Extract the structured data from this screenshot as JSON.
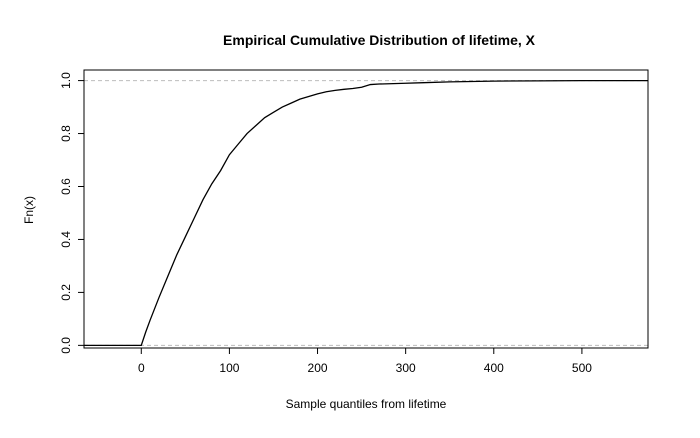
{
  "chart_data": {
    "type": "line",
    "subtype": "step-ecdf",
    "title": "Empirical Cumulative Distribution of lifetime, X",
    "xlabel": "Sample quantiles from lifetime",
    "ylabel": "Fn(x)",
    "xlim": [
      -65,
      575
    ],
    "ylim": [
      -0.01,
      1.04
    ],
    "x_ticks": [
      0,
      100,
      200,
      300,
      400,
      500
    ],
    "x_tick_labels": [
      "0",
      "100",
      "200",
      "300",
      "400",
      "500"
    ],
    "y_ticks": [
      0.0,
      0.2,
      0.4,
      0.6,
      0.8,
      1.0
    ],
    "y_tick_labels": [
      "0.0",
      "0.2",
      "0.4",
      "0.6",
      "0.8",
      "1.0"
    ],
    "reference_lines_y": [
      0,
      1
    ],
    "grid": false,
    "series": [
      {
        "points": [
          [
            -65,
            0
          ],
          [
            0,
            0
          ],
          [
            5,
            0.05
          ],
          [
            10,
            0.095
          ],
          [
            20,
            0.18
          ],
          [
            30,
            0.26
          ],
          [
            40,
            0.34
          ],
          [
            50,
            0.41
          ],
          [
            60,
            0.48
          ],
          [
            70,
            0.55
          ],
          [
            80,
            0.61
          ],
          [
            90,
            0.66
          ],
          [
            100,
            0.72
          ],
          [
            110,
            0.76
          ],
          [
            120,
            0.8
          ],
          [
            130,
            0.83
          ],
          [
            140,
            0.86
          ],
          [
            150,
            0.88
          ],
          [
            160,
            0.9
          ],
          [
            170,
            0.915
          ],
          [
            180,
            0.93
          ],
          [
            190,
            0.94
          ],
          [
            200,
            0.95
          ],
          [
            210,
            0.958
          ],
          [
            220,
            0.963
          ],
          [
            230,
            0.967
          ],
          [
            240,
            0.97
          ],
          [
            250,
            0.975
          ],
          [
            260,
            0.985
          ],
          [
            270,
            0.987
          ],
          [
            300,
            0.99
          ],
          [
            320,
            0.992
          ],
          [
            350,
            0.995
          ],
          [
            400,
            0.998
          ],
          [
            450,
            0.999
          ],
          [
            500,
            1.0
          ],
          [
            575,
            1.0
          ]
        ]
      }
    ]
  }
}
